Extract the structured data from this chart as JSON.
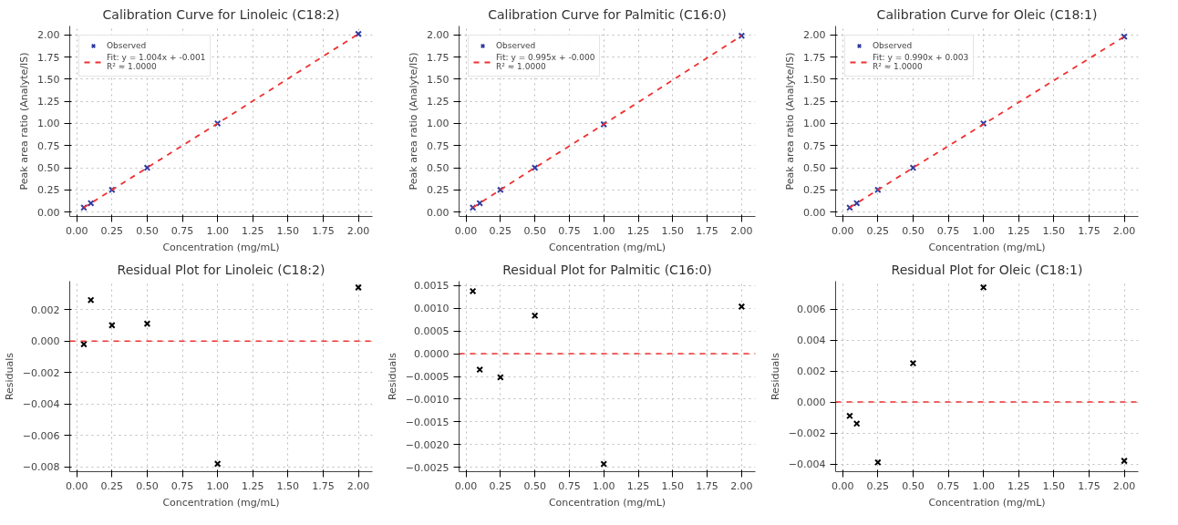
{
  "chart_data": [
    {
      "type": "scatter",
      "title": "Calibration Curve for Linoleic (C18:2)",
      "xlabel": "Concentration (mg/mL)",
      "ylabel": "Peak area ratio (Analyte/IS)",
      "x": [
        0.05,
        0.1,
        0.25,
        0.5,
        1.0,
        2.0
      ],
      "marker": "cross",
      "grid": true,
      "legend": "top left",
      "series": [
        {
          "name": "Observed",
          "color": "#2e3aa0",
          "values": [
            0.05,
            0.1,
            0.25,
            0.5,
            1.0,
            2.01
          ]
        },
        {
          "name": "Fit: y = 1.004x + -0.001\nR² ≈ 1.0000",
          "type": "line",
          "marker": "none",
          "line_style": "dashed",
          "color": "#f03030",
          "values": [
            0.05,
            0.1,
            0.25,
            0.5,
            1.0,
            2.01
          ]
        }
      ],
      "xlim": [
        -0.05,
        2.1
      ],
      "ylim": [
        -0.05,
        2.1
      ],
      "xticks": [
        {
          "value": 0,
          "label": "0.00"
        },
        {
          "value": 0.25,
          "label": "0.25"
        },
        {
          "value": 0.5,
          "label": "0.50"
        },
        {
          "value": 0.75,
          "label": "0.75"
        },
        {
          "value": 1,
          "label": "1.00"
        },
        {
          "value": 1.25,
          "label": "1.25"
        },
        {
          "value": 1.5,
          "label": "1.50"
        },
        {
          "value": 1.75,
          "label": "1.75"
        },
        {
          "value": 2,
          "label": "2.00"
        }
      ],
      "yticks": [
        {
          "value": 0,
          "label": "0.00"
        },
        {
          "value": 0.25,
          "label": "0.25"
        },
        {
          "value": 0.5,
          "label": "0.50"
        },
        {
          "value": 0.75,
          "label": "0.75"
        },
        {
          "value": 1,
          "label": "1.00"
        },
        {
          "value": 1.25,
          "label": "1.25"
        },
        {
          "value": 1.5,
          "label": "1.50"
        },
        {
          "value": 1.75,
          "label": "1.75"
        },
        {
          "value": 2,
          "label": "2.00"
        }
      ]
    },
    {
      "type": "scatter",
      "title": "Calibration Curve for Palmitic (C16:0)",
      "xlabel": "Concentration (mg/mL)",
      "ylabel": "Peak area ratio (Analyte/IS)",
      "x": [
        0.05,
        0.1,
        0.25,
        0.5,
        1.0,
        2.0
      ],
      "marker": "cross",
      "grid": true,
      "legend": "top left",
      "series": [
        {
          "name": "Observed",
          "color": "#2e3aa0",
          "values": [
            0.05,
            0.1,
            0.25,
            0.5,
            0.99,
            1.99
          ]
        },
        {
          "name": "Fit: y = 0.995x + -0.000\nR² ≈ 1.0000",
          "type": "line",
          "marker": "none",
          "line_style": "dashed",
          "color": "#f03030",
          "values": [
            0.05,
            0.1,
            0.25,
            0.5,
            0.99,
            1.99
          ]
        }
      ],
      "xlim": [
        -0.05,
        2.1
      ],
      "ylim": [
        -0.05,
        2.1
      ],
      "xticks": [
        {
          "value": 0,
          "label": "0.00"
        },
        {
          "value": 0.25,
          "label": "0.25"
        },
        {
          "value": 0.5,
          "label": "0.50"
        },
        {
          "value": 0.75,
          "label": "0.75"
        },
        {
          "value": 1,
          "label": "1.00"
        },
        {
          "value": 1.25,
          "label": "1.25"
        },
        {
          "value": 1.5,
          "label": "1.50"
        },
        {
          "value": 1.75,
          "label": "1.75"
        },
        {
          "value": 2,
          "label": "2.00"
        }
      ],
      "yticks": [
        {
          "value": 0,
          "label": "0.00"
        },
        {
          "value": 0.25,
          "label": "0.25"
        },
        {
          "value": 0.5,
          "label": "0.50"
        },
        {
          "value": 0.75,
          "label": "0.75"
        },
        {
          "value": 1,
          "label": "1.00"
        },
        {
          "value": 1.25,
          "label": "1.25"
        },
        {
          "value": 1.5,
          "label": "1.50"
        },
        {
          "value": 1.75,
          "label": "1.75"
        },
        {
          "value": 2,
          "label": "2.00"
        }
      ]
    },
    {
      "type": "scatter",
      "title": "Calibration Curve for Oleic (C18:1)",
      "xlabel": "Concentration (mg/mL)",
      "ylabel": "Peak area ratio (Analyte/IS)",
      "x": [
        0.05,
        0.1,
        0.25,
        0.5,
        1.0,
        2.0
      ],
      "marker": "cross",
      "grid": true,
      "legend": "top left",
      "series": [
        {
          "name": "Observed",
          "color": "#2e3aa0",
          "values": [
            0.05,
            0.1,
            0.25,
            0.5,
            1.0,
            1.98
          ]
        },
        {
          "name": "Fit: y = 0.990x + 0.003\nR² ≈ 1.0000",
          "type": "line",
          "marker": "none",
          "line_style": "dashed",
          "color": "#f03030",
          "values": [
            0.05,
            0.1,
            0.25,
            0.5,
            0.99,
            1.98
          ]
        }
      ],
      "xlim": [
        -0.05,
        2.1
      ],
      "ylim": [
        -0.05,
        2.1
      ],
      "xticks": [
        {
          "value": 0,
          "label": "0.00"
        },
        {
          "value": 0.25,
          "label": "0.25"
        },
        {
          "value": 0.5,
          "label": "0.50"
        },
        {
          "value": 0.75,
          "label": "0.75"
        },
        {
          "value": 1,
          "label": "1.00"
        },
        {
          "value": 1.25,
          "label": "1.25"
        },
        {
          "value": 1.5,
          "label": "1.50"
        },
        {
          "value": 1.75,
          "label": "1.75"
        },
        {
          "value": 2,
          "label": "2.00"
        }
      ],
      "yticks": [
        {
          "value": 0,
          "label": "0.00"
        },
        {
          "value": 0.25,
          "label": "0.25"
        },
        {
          "value": 0.5,
          "label": "0.50"
        },
        {
          "value": 0.75,
          "label": "0.75"
        },
        {
          "value": 1,
          "label": "1.00"
        },
        {
          "value": 1.25,
          "label": "1.25"
        },
        {
          "value": 1.5,
          "label": "1.50"
        },
        {
          "value": 1.75,
          "label": "1.75"
        },
        {
          "value": 2,
          "label": "2.00"
        }
      ]
    },
    {
      "type": "scatter",
      "title": "Residual Plot for Linoleic (C18:2)",
      "xlabel": "Concentration (mg/mL)",
      "ylabel": "Residuals",
      "x": [
        0.05,
        0.1,
        0.25,
        0.5,
        1.0,
        2.0
      ],
      "marker": "cross",
      "grid": true,
      "series": [
        {
          "color": "#000000",
          "values": [
            -0.0002,
            0.0026,
            0.001,
            0.0011,
            -0.0078,
            0.0034
          ]
        }
      ],
      "ref_lines": [
        {
          "axis": "y",
          "value": 0,
          "color": "#f03030",
          "line_style": "dashed"
        }
      ],
      "xlim": [
        -0.05,
        2.1
      ],
      "ylim": [
        -0.0083,
        0.0038
      ],
      "xticks": [
        {
          "value": 0,
          "label": "0.00"
        },
        {
          "value": 0.25,
          "label": "0.25"
        },
        {
          "value": 0.5,
          "label": "0.50"
        },
        {
          "value": 0.75,
          "label": "0.75"
        },
        {
          "value": 1,
          "label": "1.00"
        },
        {
          "value": 1.25,
          "label": "1.25"
        },
        {
          "value": 1.5,
          "label": "1.50"
        },
        {
          "value": 1.75,
          "label": "1.75"
        },
        {
          "value": 2,
          "label": "2.00"
        }
      ],
      "yticks": [
        {
          "value": -0.008,
          "label": "−0.008"
        },
        {
          "value": -0.006,
          "label": "−0.006"
        },
        {
          "value": -0.004,
          "label": "−0.004"
        },
        {
          "value": -0.002,
          "label": "−0.002"
        },
        {
          "value": 0,
          "label": "0.000"
        },
        {
          "value": 0.002,
          "label": "0.002"
        }
      ]
    },
    {
      "type": "scatter",
      "title": "Residual Plot for Palmitic (C16:0)",
      "xlabel": "Concentration (mg/mL)",
      "ylabel": "Residuals",
      "x": [
        0.05,
        0.1,
        0.25,
        0.5,
        1.0,
        2.0
      ],
      "marker": "cross",
      "grid": true,
      "series": [
        {
          "color": "#000000",
          "values": [
            0.00138,
            -0.00035,
            -0.00052,
            0.00084,
            -0.00243,
            0.00104
          ]
        }
      ],
      "ref_lines": [
        {
          "axis": "y",
          "value": 0,
          "color": "#f03030",
          "line_style": "dashed"
        }
      ],
      "xlim": [
        -0.05,
        2.1
      ],
      "ylim": [
        -0.0026,
        0.0016
      ],
      "xticks": [
        {
          "value": 0,
          "label": "0.00"
        },
        {
          "value": 0.25,
          "label": "0.25"
        },
        {
          "value": 0.5,
          "label": "0.50"
        },
        {
          "value": 0.75,
          "label": "0.75"
        },
        {
          "value": 1,
          "label": "1.00"
        },
        {
          "value": 1.25,
          "label": "1.25"
        },
        {
          "value": 1.5,
          "label": "1.50"
        },
        {
          "value": 1.75,
          "label": "1.75"
        },
        {
          "value": 2,
          "label": "2.00"
        }
      ],
      "yticks": [
        {
          "value": -0.0025,
          "label": "−0.0025"
        },
        {
          "value": -0.002,
          "label": "−0.0020"
        },
        {
          "value": -0.0015,
          "label": "−0.0015"
        },
        {
          "value": -0.001,
          "label": "−0.0010"
        },
        {
          "value": -0.0005,
          "label": "−0.0005"
        },
        {
          "value": 0,
          "label": "0.0000"
        },
        {
          "value": 0.0005,
          "label": "0.0005"
        },
        {
          "value": 0.001,
          "label": "0.0010"
        },
        {
          "value": 0.0015,
          "label": "0.0015"
        }
      ]
    },
    {
      "type": "scatter",
      "title": "Residual Plot for Oleic (C18:1)",
      "xlabel": "Concentration (mg/mL)",
      "ylabel": "Residuals",
      "x": [
        0.05,
        0.1,
        0.25,
        0.5,
        1.0,
        2.0
      ],
      "marker": "cross",
      "grid": true,
      "series": [
        {
          "color": "#000000",
          "values": [
            -0.0009,
            -0.0014,
            -0.0039,
            0.0025,
            0.0074,
            -0.0038
          ]
        }
      ],
      "ref_lines": [
        {
          "axis": "y",
          "value": 0,
          "color": "#f03030",
          "line_style": "dashed"
        }
      ],
      "xlim": [
        -0.05,
        2.1
      ],
      "ylim": [
        -0.0045,
        0.0078
      ],
      "xticks": [
        {
          "value": 0,
          "label": "0.00"
        },
        {
          "value": 0.25,
          "label": "0.25"
        },
        {
          "value": 0.5,
          "label": "0.50"
        },
        {
          "value": 0.75,
          "label": "0.75"
        },
        {
          "value": 1,
          "label": "1.00"
        },
        {
          "value": 1.25,
          "label": "1.25"
        },
        {
          "value": 1.5,
          "label": "1.50"
        },
        {
          "value": 1.75,
          "label": "1.75"
        },
        {
          "value": 2,
          "label": "2.00"
        }
      ],
      "yticks": [
        {
          "value": -0.004,
          "label": "−0.004"
        },
        {
          "value": -0.002,
          "label": "−0.002"
        },
        {
          "value": 0,
          "label": "0.000"
        },
        {
          "value": 0.002,
          "label": "0.002"
        },
        {
          "value": 0.004,
          "label": "0.004"
        },
        {
          "value": 0.006,
          "label": "0.006"
        }
      ]
    }
  ]
}
